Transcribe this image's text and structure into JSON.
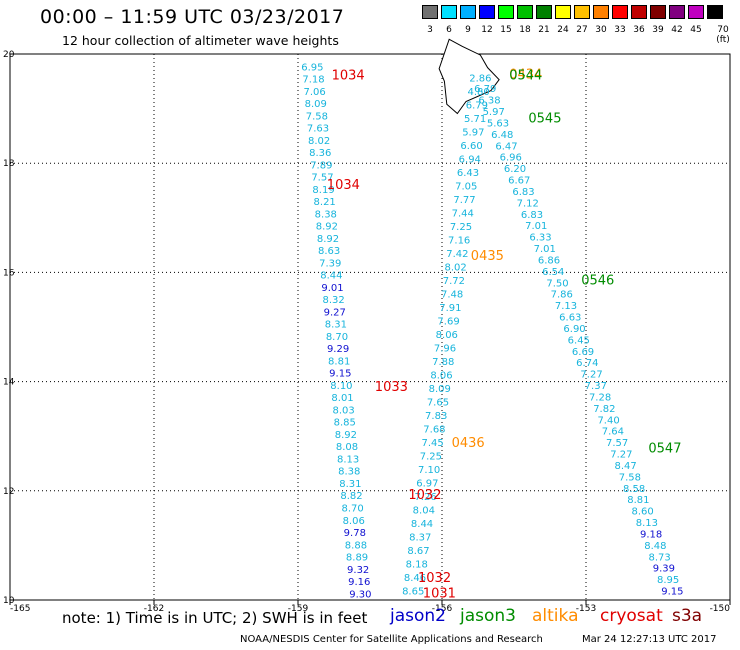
{
  "header": {
    "title": "00:00 – 11:59 UTC 03/23/2017",
    "subtitle": "12 hour collection of altimeter wave heights"
  },
  "colorbar": {
    "colors": [
      "#707070",
      "#00e0ff",
      "#00b0ff",
      "#0000ff",
      "#00ff00",
      "#00c000",
      "#008000",
      "#ffff00",
      "#ffc000",
      "#ff8000",
      "#ff0000",
      "#c00000",
      "#800000",
      "#800080",
      "#c000c0",
      "#000000"
    ],
    "labels": [
      "3",
      "6",
      "9",
      "12",
      "15",
      "18",
      "21",
      "24",
      "27",
      "30",
      "33",
      "36",
      "39",
      "42",
      "45",
      "70 (ft)"
    ]
  },
  "axes": {
    "x_ticks": [
      "-165",
      "-162",
      "-159",
      "-156",
      "-153",
      "-150"
    ],
    "y_ticks": [
      "20",
      "18",
      "16",
      "14",
      "12",
      "10"
    ]
  },
  "satellites": [
    {
      "name": "jason2",
      "color": "#0000c8"
    },
    {
      "name": "jason3",
      "color": "#008c00"
    },
    {
      "name": "altika",
      "color": "#ff8c00"
    },
    {
      "name": "cryosat",
      "color": "#e00000"
    },
    {
      "name": "s3a",
      "color": "#800000"
    }
  ],
  "passes": [
    {
      "time": "1034",
      "satellite": "cryosat",
      "lon": -158.3,
      "lat": 19.53
    },
    {
      "time": "1034",
      "satellite": "cryosat",
      "lon": -158.4,
      "lat": 17.53
    },
    {
      "time": "1033",
      "satellite": "cryosat",
      "lon": -157.4,
      "lat": 13.83
    },
    {
      "time": "1032",
      "satellite": "cryosat",
      "lon": -156.7,
      "lat": 11.85
    },
    {
      "time": "1032",
      "satellite": "cryosat",
      "lon": -156.5,
      "lat": 10.33
    },
    {
      "time": "1031",
      "satellite": "cryosat",
      "lon": -156.4,
      "lat": 10.05
    },
    {
      "time": "0434",
      "satellite": "altika",
      "lon": -154.6,
      "lat": 19.55
    },
    {
      "time": "0435",
      "satellite": "altika",
      "lon": -155.4,
      "lat": 16.23
    },
    {
      "time": "0436",
      "satellite": "altika",
      "lon": -155.8,
      "lat": 12.8
    },
    {
      "time": "0544",
      "satellite": "jason3",
      "lon": -154.6,
      "lat": 19.53
    },
    {
      "time": "0545",
      "satellite": "jason3",
      "lon": -154.2,
      "lat": 18.75
    },
    {
      "time": "0546",
      "satellite": "jason3",
      "lon": -153.1,
      "lat": 15.78
    },
    {
      "time": "0547",
      "satellite": "jason3",
      "lon": -151.7,
      "lat": 12.7
    }
  ],
  "tracks": [
    {
      "satellite": "cryosat",
      "start": [
        -158.7,
        19.7
      ],
      "end": [
        -157.7,
        10.05
      ],
      "values": [
        "6.95",
        "7.18",
        "7.06",
        "8.09",
        "7.58",
        "7.63",
        "8.02",
        "8.36",
        "7.89",
        "7.57",
        "8.19",
        "8.21",
        "8.38",
        "8.92",
        "8.92",
        "8.63",
        "7.39",
        "8.44",
        "9.01",
        "8.32",
        "9.27",
        "8.31",
        "8.70",
        "9.29",
        "8.81",
        "9.15",
        "8.10",
        "8.01",
        "8.03",
        "8.85",
        "8.92",
        "8.08",
        "8.13",
        "8.38",
        "8.31",
        "8.82",
        "8.70",
        "8.06",
        "9.78",
        "8.88",
        "8.89",
        "9.32",
        "9.16",
        "9.30"
      ],
      "blue": [
        "9.01",
        "9.27",
        "9.29",
        "9.15",
        "9.78",
        "9.32",
        "9.16",
        "9.30"
      ]
    },
    {
      "satellite": "altika",
      "start": [
        -155.2,
        19.5
      ],
      "end": [
        -156.6,
        10.1
      ],
      "values": [
        "2.86",
        "4.80",
        "6.79",
        "5.71",
        "5.97",
        "6.60",
        "6.94",
        "6.43",
        "7.05",
        "7.77",
        "7.44",
        "7.25",
        "7.16",
        "7.42",
        "8.02",
        "7.72",
        "7.48",
        "7.91",
        "7.69",
        "8.06",
        "7.96",
        "7.88",
        "8.06",
        "8.09",
        "7.65",
        "7.83",
        "7.68",
        "7.45",
        "7.25",
        "7.10",
        "6.97",
        "7.26",
        "8.04",
        "8.44",
        "8.37",
        "8.67",
        "8.18",
        "8.46",
        "8.65"
      ]
    },
    {
      "satellite": "jason3",
      "start": [
        -155.1,
        19.3
      ],
      "end": [
        -151.2,
        10.1
      ],
      "values": [
        "6.79",
        "6.38",
        "5.97",
        "5.63",
        "6.48",
        "6.47",
        "6.96",
        "6.20",
        "6.67",
        "6.83",
        "7.12",
        "6.83",
        "7.01",
        "6.33",
        "7.01",
        "6.86",
        "6.54",
        "7.50",
        "7.86",
        "7.13",
        "6.63",
        "6.90",
        "6.45",
        "6.69",
        "6.74",
        "7.27",
        "7.37",
        "7.28",
        "7.82",
        "7.40",
        "7.64",
        "7.57",
        "7.27",
        "8.47",
        "7.58",
        "8.58",
        "8.81",
        "8.60",
        "8.13",
        "9.18",
        "8.48",
        "8.73",
        "9.39",
        "8.95",
        "9.15"
      ],
      "blue": [
        "9.18",
        "9.39",
        "9.15"
      ]
    }
  ],
  "footer": {
    "note": "note: 1) Time is in UTC; 2) SWH is in feet",
    "credit": "NOAA/NESDIS Center for Satellite Applications and Research",
    "timestamp": "Mar 24 12:27:13 UTC 2017"
  }
}
